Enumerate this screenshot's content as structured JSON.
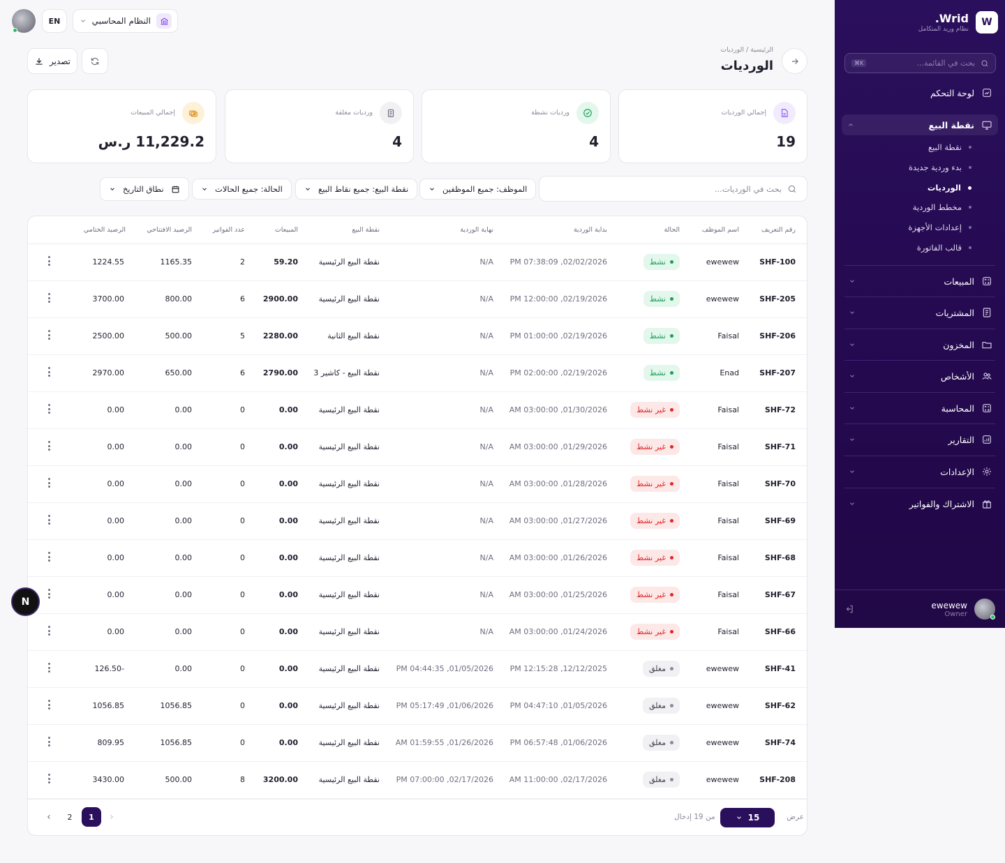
{
  "brand": {
    "logo_letter": "W",
    "name": "Wrid.",
    "subtitle": "نظام وريد المتكامل"
  },
  "sidebar": {
    "search_placeholder": "بحث في القائمة...",
    "shortcut": "K⌘",
    "items": [
      {
        "label": "لوحة التحكم",
        "icon": "dashboard-icon"
      },
      {
        "label": "نقطة البيع",
        "icon": "monitor-icon",
        "active": true
      },
      {
        "label": "المبيعات",
        "icon": "calculator-icon"
      },
      {
        "label": "المشتريات",
        "icon": "receipt-icon"
      },
      {
        "label": "المخزون",
        "icon": "folder-icon"
      },
      {
        "label": "الأشخاص",
        "icon": "users-icon"
      },
      {
        "label": "المحاسبة",
        "icon": "calculator-icon"
      },
      {
        "label": "التقارير",
        "icon": "chart-icon"
      },
      {
        "label": "الإعدادات",
        "icon": "gear-icon"
      },
      {
        "label": "الاشتراك والفواتير",
        "icon": "gift-icon"
      }
    ],
    "subitems": [
      {
        "label": "نقطة البيع"
      },
      {
        "label": "بدء وردية جديدة"
      },
      {
        "label": "الورديات",
        "active": true
      },
      {
        "label": "مخطط الوردية"
      },
      {
        "label": "إعدادات الأجهزة"
      },
      {
        "label": "قالب الفاتورة"
      }
    ],
    "user": {
      "name": "ewewew",
      "role": "Owner"
    }
  },
  "topbar": {
    "lang": "EN",
    "system": "النظام المحاسبي"
  },
  "header": {
    "breadcrumb": "الرئيسية / الورديات",
    "title": "الورديات",
    "export_label": "تصدير"
  },
  "stats": [
    {
      "label": "إجمالي الورديات",
      "value": "19",
      "color": "#8b5cf6",
      "bg": "#f1ebfe"
    },
    {
      "label": "ورديات نشطة",
      "value": "4",
      "color": "#18a058",
      "bg": "#e3f7ec"
    },
    {
      "label": "ورديات مغلقة",
      "value": "4",
      "color": "#6e6e80",
      "bg": "#f1f1f4"
    },
    {
      "label": "إجمالي المبيعات",
      "value": "11,229.2 ر.س",
      "color": "#e08a10",
      "bg": "#fdf1d8"
    }
  ],
  "filters": {
    "search_placeholder": "بحث في الورديات...",
    "employee": "الموظف: جميع الموظفين",
    "pos": "نقطة البيع: جميع نقاط البيع",
    "status": "الحالة: جميع الحالات",
    "date": "نطاق التاريخ"
  },
  "table": {
    "columns": {
      "id": "رقم التعريف",
      "employee": "اسم الموظف",
      "status": "الحالة",
      "start": "بداية الوردية",
      "end": "نهاية الوردية",
      "pos": "نقطة البيع",
      "sales": "المبيعات",
      "invoices": "عدد الفواتير",
      "opening": "الرصيد الافتتاحي",
      "closing": "الرصيد الختامي"
    },
    "rows": [
      {
        "id": "SHF-100",
        "employee": "ewewew",
        "status": "نشط",
        "kind": "active",
        "start": "PM 07:38:09 ,02/02/2026",
        "end": "N/A",
        "pos": "نقطة البيع الرئيسية",
        "sales": "59.20",
        "invoices": "2",
        "opening": "1165.35",
        "closing": "1224.55"
      },
      {
        "id": "SHF-205",
        "employee": "ewewew",
        "status": "نشط",
        "kind": "active",
        "start": "PM 12:00:00 ,02/19/2026",
        "end": "N/A",
        "pos": "نقطة البيع الرئيسية",
        "sales": "2900.00",
        "invoices": "6",
        "opening": "800.00",
        "closing": "3700.00"
      },
      {
        "id": "SHF-206",
        "employee": "Faisal",
        "status": "نشط",
        "kind": "active",
        "start": "PM 01:00:00 ,02/19/2026",
        "end": "N/A",
        "pos": "نقطة البيع الثانية",
        "sales": "2280.00",
        "invoices": "5",
        "opening": "500.00",
        "closing": "2500.00"
      },
      {
        "id": "SHF-207",
        "employee": "Enad",
        "status": "نشط",
        "kind": "active",
        "start": "PM 02:00:00 ,02/19/2026",
        "end": "N/A",
        "pos": "نقطة البيع - كاشير 3",
        "sales": "2790.00",
        "invoices": "6",
        "opening": "650.00",
        "closing": "2970.00"
      },
      {
        "id": "SHF-72",
        "employee": "Faisal",
        "status": "غير نشط",
        "kind": "inactive",
        "start": "AM 03:00:00 ,01/30/2026",
        "end": "N/A",
        "pos": "نقطة البيع الرئيسية",
        "sales": "0.00",
        "invoices": "0",
        "opening": "0.00",
        "closing": "0.00"
      },
      {
        "id": "SHF-71",
        "employee": "Faisal",
        "status": "غير نشط",
        "kind": "inactive",
        "start": "AM 03:00:00 ,01/29/2026",
        "end": "N/A",
        "pos": "نقطة البيع الرئيسية",
        "sales": "0.00",
        "invoices": "0",
        "opening": "0.00",
        "closing": "0.00"
      },
      {
        "id": "SHF-70",
        "employee": "Faisal",
        "status": "غير نشط",
        "kind": "inactive",
        "start": "AM 03:00:00 ,01/28/2026",
        "end": "N/A",
        "pos": "نقطة البيع الرئيسية",
        "sales": "0.00",
        "invoices": "0",
        "opening": "0.00",
        "closing": "0.00"
      },
      {
        "id": "SHF-69",
        "employee": "Faisal",
        "status": "غير نشط",
        "kind": "inactive",
        "start": "AM 03:00:00 ,01/27/2026",
        "end": "N/A",
        "pos": "نقطة البيع الرئيسية",
        "sales": "0.00",
        "invoices": "0",
        "opening": "0.00",
        "closing": "0.00"
      },
      {
        "id": "SHF-68",
        "employee": "Faisal",
        "status": "غير نشط",
        "kind": "inactive",
        "start": "AM 03:00:00 ,01/26/2026",
        "end": "N/A",
        "pos": "نقطة البيع الرئيسية",
        "sales": "0.00",
        "invoices": "0",
        "opening": "0.00",
        "closing": "0.00"
      },
      {
        "id": "SHF-67",
        "employee": "Faisal",
        "status": "غير نشط",
        "kind": "inactive",
        "start": "AM 03:00:00 ,01/25/2026",
        "end": "N/A",
        "pos": "نقطة البيع الرئيسية",
        "sales": "0.00",
        "invoices": "0",
        "opening": "0.00",
        "closing": "0.00"
      },
      {
        "id": "SHF-66",
        "employee": "Faisal",
        "status": "غير نشط",
        "kind": "inactive",
        "start": "AM 03:00:00 ,01/24/2026",
        "end": "N/A",
        "pos": "نقطة البيع الرئيسية",
        "sales": "0.00",
        "invoices": "0",
        "opening": "0.00",
        "closing": "0.00"
      },
      {
        "id": "SHF-41",
        "employee": "ewewew",
        "status": "مغلق",
        "kind": "closed",
        "start": "PM 12:15:28 ,12/12/2025",
        "end": "PM 04:44:35 ,01/05/2026",
        "pos": "نقطة البيع الرئيسية",
        "sales": "0.00",
        "invoices": "0",
        "opening": "0.00",
        "closing": "126.50-"
      },
      {
        "id": "SHF-62",
        "employee": "ewewew",
        "status": "مغلق",
        "kind": "closed",
        "start": "PM 04:47:10 ,01/05/2026",
        "end": "PM 05:17:49 ,01/06/2026",
        "pos": "نقطة البيع الرئيسية",
        "sales": "0.00",
        "invoices": "0",
        "opening": "1056.85",
        "closing": "1056.85"
      },
      {
        "id": "SHF-74",
        "employee": "ewewew",
        "status": "مغلق",
        "kind": "closed",
        "start": "PM 06:57:48 ,01/06/2026",
        "end": "AM 01:59:55 ,01/26/2026",
        "pos": "نقطة البيع الرئيسية",
        "sales": "0.00",
        "invoices": "0",
        "opening": "1056.85",
        "closing": "809.95"
      },
      {
        "id": "SHF-208",
        "employee": "ewewew",
        "status": "مغلق",
        "kind": "closed",
        "start": "AM 11:00:00 ,02/17/2026",
        "end": "PM 07:00:00 ,02/17/2026",
        "pos": "نقطة البيع الرئيسية",
        "sales": "3200.00",
        "invoices": "8",
        "opening": "500.00",
        "closing": "3430.00"
      }
    ]
  },
  "pagination": {
    "show_label": "عرض",
    "per_page": "15",
    "of_label": "من 19 إدخال",
    "pages": [
      "1",
      "2"
    ],
    "current": "1"
  },
  "floating": {
    "letter": "N"
  }
}
